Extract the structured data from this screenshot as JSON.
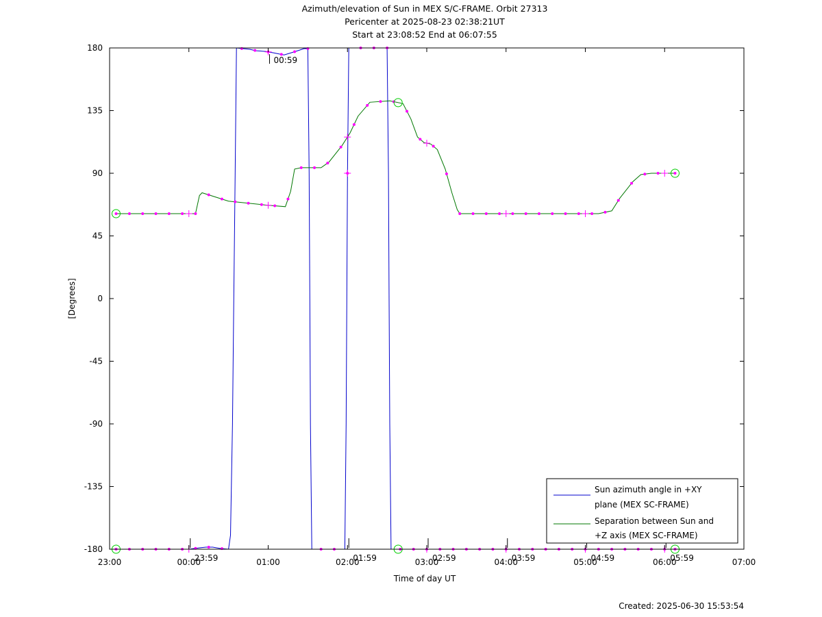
{
  "chart_data": {
    "type": "line",
    "title": [
      "Azimuth/elevation of Sun in MEX S/C-FRAME.  Orbit 27313",
      "Pericenter at 2025-08-23 02:38:21UT",
      "Start at 23:08:52 End at 06:07:55"
    ],
    "xlabel": "Time of day UT",
    "ylabel": "[Degrees]",
    "xlim": [
      0,
      480
    ],
    "ylim": [
      -180,
      180
    ],
    "x_tick_labels": [
      {
        "x": 0,
        "label": "23:00"
      },
      {
        "x": 60,
        "label": "00:00"
      },
      {
        "x": 120,
        "label": "01:00"
      },
      {
        "x": 180,
        "label": "02:00"
      },
      {
        "x": 240,
        "label": "03:00"
      },
      {
        "x": 300,
        "label": "04:00"
      },
      {
        "x": 360,
        "label": "05:00"
      },
      {
        "x": 420,
        "label": "06:00"
      },
      {
        "x": 480,
        "label": "07:00"
      }
    ],
    "y_ticks": [
      -180,
      -135,
      -90,
      -45,
      0,
      45,
      90,
      135,
      180
    ],
    "y_tick_labels": [
      "-180",
      "-135",
      "-90",
      "-45",
      "0",
      "45",
      "90",
      "135",
      "180"
    ],
    "grid": false,
    "legend_position": "bottom-right",
    "series": [
      {
        "name": "Sun azimuth angle in +XY plane (MEX SC-FRAME)",
        "legend_lines": [
          "Sun azimuth angle in +XY",
          "plane (MEX SC-FRAME)"
        ],
        "color": "#0000cc",
        "points": [
          [
            4.9,
            -180
          ],
          [
            60,
            -180
          ],
          [
            68,
            -179
          ],
          [
            73,
            -178.5
          ],
          [
            78,
            -178.5
          ],
          [
            84,
            -179.5
          ],
          [
            90,
            -180
          ],
          [
            91.5,
            -170
          ],
          [
            93,
            -90
          ],
          [
            94,
            0
          ],
          [
            95,
            90
          ],
          [
            96,
            180
          ],
          [
            106,
            179
          ],
          [
            111,
            178
          ],
          [
            118,
            177.5
          ],
          [
            124,
            176.5
          ],
          [
            132,
            175
          ],
          [
            139,
            177
          ],
          [
            144,
            178.5
          ],
          [
            147,
            179.5
          ],
          [
            150,
            179.5
          ],
          [
            151,
            90
          ],
          [
            151.5,
            0
          ],
          [
            152,
            -90
          ],
          [
            153,
            -180
          ],
          [
            178,
            -180
          ],
          [
            179,
            -90
          ],
          [
            179.5,
            0
          ],
          [
            180,
            90
          ],
          [
            181,
            180
          ],
          [
            210,
            180
          ],
          [
            211,
            90
          ],
          [
            211.5,
            0
          ],
          [
            212,
            -90
          ],
          [
            213,
            -180
          ],
          [
            420,
            -180
          ],
          [
            427.9,
            -180
          ]
        ]
      },
      {
        "name": "Separation between Sun and +Z axis (MEX SC-FRAME)",
        "legend_lines": [
          "Separation between Sun and",
          "+Z axis (MEX SC-FRAME)"
        ],
        "color": "#007700",
        "points": [
          [
            4.9,
            61
          ],
          [
            65,
            61
          ],
          [
            68,
            74
          ],
          [
            70,
            76
          ],
          [
            90,
            70
          ],
          [
            120,
            67
          ],
          [
            133,
            66
          ],
          [
            137,
            77
          ],
          [
            140,
            93
          ],
          [
            145,
            94
          ],
          [
            160,
            94
          ],
          [
            166,
            98
          ],
          [
            176,
            110
          ],
          [
            182,
            119
          ],
          [
            188,
            131
          ],
          [
            197,
            141
          ],
          [
            212,
            142
          ],
          [
            222,
            140
          ],
          [
            228,
            129
          ],
          [
            233,
            116
          ],
          [
            238,
            112
          ],
          [
            243,
            111
          ],
          [
            248,
            107
          ],
          [
            254,
            93
          ],
          [
            259,
            76
          ],
          [
            263,
            64
          ],
          [
            265,
            61
          ],
          [
            370,
            61
          ],
          [
            380,
            63
          ],
          [
            386,
            72
          ],
          [
            396,
            84
          ],
          [
            402,
            89
          ],
          [
            410,
            90
          ],
          [
            427.9,
            90
          ]
        ]
      }
    ],
    "markers": {
      "start_time_x": 4.9,
      "end_time_x": 427.9,
      "tick_marks_x": [
        60,
        120,
        180,
        240,
        300,
        360,
        420
      ],
      "tick_mark_labels": [
        "23:59",
        "00:59",
        "01:59",
        "02:59",
        "03:59",
        "04:59",
        "05:59"
      ],
      "pericenter_x": 218.35,
      "azimuth_dots_x": [
        4.9,
        15,
        25,
        35,
        45,
        55,
        65,
        75,
        85,
        100,
        110,
        120,
        130,
        140,
        150,
        160,
        170,
        180,
        190,
        200,
        210,
        220,
        230,
        240,
        250,
        260,
        270,
        280,
        290,
        300,
        310,
        320,
        330,
        340,
        350,
        360,
        370,
        380,
        390,
        400,
        410,
        420,
        427.9
      ],
      "separation_dots_x": [
        4.9,
        15,
        25,
        35,
        45,
        55,
        65,
        75,
        85,
        95,
        105,
        115,
        125,
        135,
        145,
        155,
        165,
        175,
        185,
        195,
        205,
        215,
        225,
        235,
        245,
        255,
        265,
        275,
        285,
        295,
        305,
        315,
        325,
        335,
        345,
        355,
        365,
        375,
        385,
        395,
        405,
        415,
        427.9
      ]
    },
    "footer": "Created: 2025-06-30 15:53:54"
  }
}
